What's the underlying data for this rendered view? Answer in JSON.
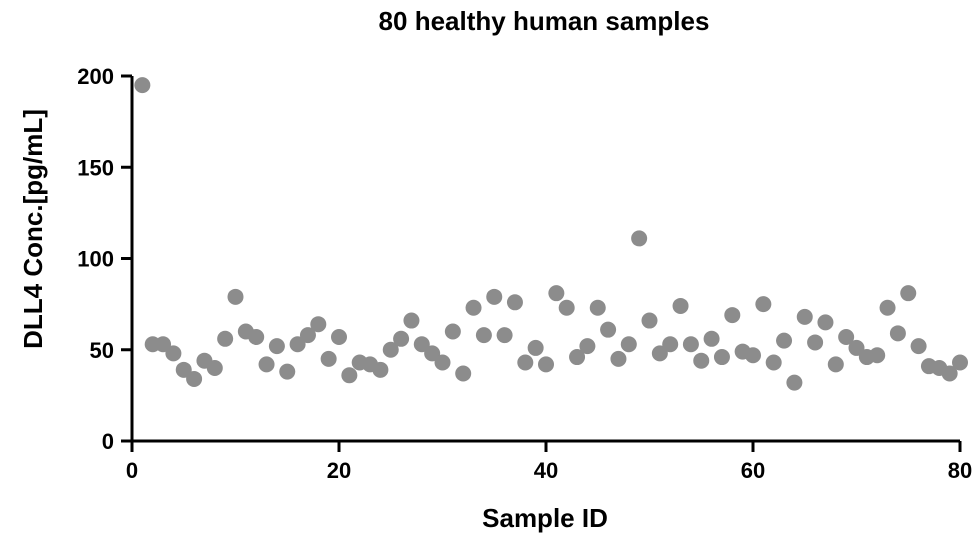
{
  "chart_data": {
    "type": "scatter",
    "title": "80 healthy human samples",
    "xlabel": "Sample ID",
    "ylabel": "DLL4 Conc.[pg/mL]",
    "xlim": [
      0,
      80
    ],
    "ylim": [
      0,
      200
    ],
    "xticks": [
      0,
      20,
      40,
      60,
      80
    ],
    "yticks": [
      0,
      50,
      100,
      150,
      200
    ],
    "grid": false,
    "marker_color": "#8c8c8c",
    "series": [
      {
        "x": [
          1,
          2,
          3,
          4,
          5,
          6,
          7,
          8,
          9,
          10,
          11,
          12,
          13,
          14,
          15,
          16,
          17,
          18,
          19,
          20,
          21,
          22,
          23,
          24,
          25,
          26,
          27,
          28,
          29,
          30,
          31,
          32,
          33,
          34,
          35,
          36,
          37,
          38,
          39,
          40,
          41,
          42,
          43,
          44,
          45,
          46,
          47,
          48,
          49,
          50,
          51,
          52,
          53,
          54,
          55,
          56,
          57,
          58,
          59,
          60,
          61,
          62,
          63,
          64,
          65,
          66,
          67,
          68,
          69,
          70,
          71,
          72,
          73,
          74,
          75,
          76,
          77,
          78,
          79,
          80
        ],
        "y": [
          195,
          53,
          53,
          48,
          39,
          34,
          44,
          40,
          56,
          79,
          60,
          57,
          42,
          52,
          38,
          53,
          58,
          64,
          45,
          57,
          36,
          43,
          42,
          39,
          50,
          56,
          66,
          53,
          48,
          43,
          60,
          37,
          73,
          58,
          79,
          58,
          76,
          43,
          51,
          42,
          81,
          73,
          46,
          52,
          73,
          61,
          45,
          53,
          111,
          66,
          48,
          53,
          74,
          53,
          44,
          56,
          46,
          69,
          49,
          47,
          75,
          43,
          55,
          32,
          68,
          54,
          65,
          42,
          57,
          51,
          46,
          47,
          73,
          59,
          81,
          52,
          41,
          40,
          37,
          43
        ]
      }
    ]
  }
}
